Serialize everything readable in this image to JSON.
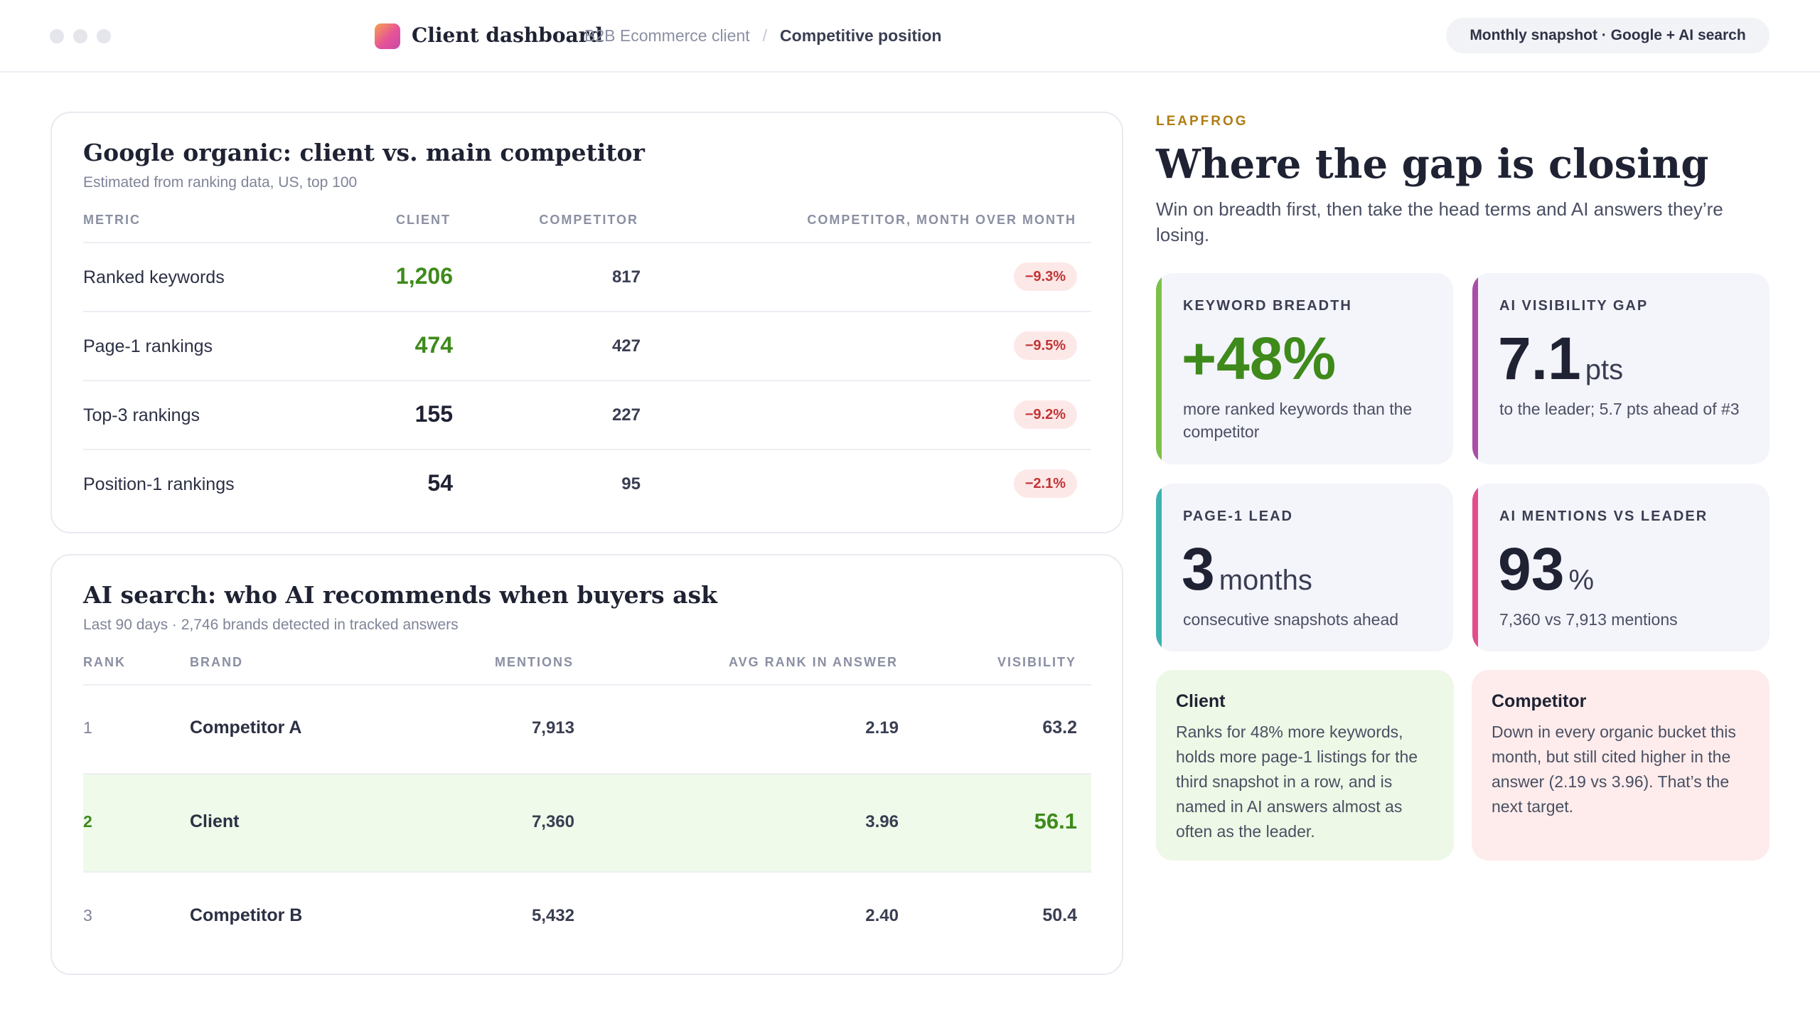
{
  "topbar": {
    "app_title": "Client dashboard",
    "breadcrumb": [
      "B2B Ecommerce client",
      "Competitive position"
    ],
    "breadcrumb_sep": "/",
    "snapshot": "Monthly snapshot · Google + AI search"
  },
  "organic": {
    "title": "Google organic: client vs. main competitor",
    "subtitle": "Estimated from ranking data, US, top 100",
    "headers": [
      "Metric",
      "Client",
      "Competitor",
      "Competitor, month over month"
    ],
    "rows": [
      {
        "metric": "Ranked keywords",
        "client": "1,206",
        "competitor": "817",
        "delta": "−9.3%",
        "client_leads": true
      },
      {
        "metric": "Page-1 rankings",
        "client": "474",
        "competitor": "427",
        "delta": "−9.5%",
        "client_leads": true
      },
      {
        "metric": "Top-3 rankings",
        "client": "155",
        "competitor": "227",
        "delta": "−9.2%",
        "client_leads": false
      },
      {
        "metric": "Position-1 rankings",
        "client": "54",
        "competitor": "95",
        "delta": "−2.1%",
        "client_leads": false
      }
    ]
  },
  "ai_search": {
    "title": "AI search: who AI recommends when buyers ask",
    "subtitle": "Last 90 days · 2,746 brands detected in tracked answers",
    "headers": [
      "Rank",
      "Brand",
      "Mentions",
      "Avg rank in answer",
      "Visibility"
    ],
    "rows": [
      {
        "rank": "1",
        "brand": "Competitor A",
        "mentions": "7,913",
        "avg_rank": "2.19",
        "visibility": "63.2",
        "highlight": false
      },
      {
        "rank": "2",
        "brand": "Client",
        "mentions": "7,360",
        "avg_rank": "3.96",
        "visibility": "56.1",
        "highlight": true
      },
      {
        "rank": "3",
        "brand": "Competitor B",
        "mentions": "5,432",
        "avg_rank": "2.40",
        "visibility": "50.4",
        "highlight": false
      }
    ]
  },
  "panel": {
    "eyebrow": "LEAPFROG",
    "headline": "Where the gap is closing",
    "lede": "Win on breadth first, then take the head terms and AI answers they’re losing.",
    "stats": [
      {
        "label": "Keyword breadth",
        "value": "+48%",
        "unit": "",
        "desc": "more ranked keywords than the competitor",
        "accent": "#7cc04a"
      },
      {
        "label": "AI visibility gap",
        "value": "7.1",
        "unit": "pts",
        "desc": "to the leader; 5.7 pts ahead of #3",
        "accent": "#a94ea8"
      },
      {
        "label": "Page-1 lead",
        "value": "3",
        "unit": "months",
        "desc": "consecutive snapshots ahead",
        "accent": "#3fb2b0"
      },
      {
        "label": "AI mentions vs leader",
        "value": "93",
        "unit": "%",
        "desc": "7,360 vs 7,913 mentions",
        "accent": "#e24e8c"
      }
    ],
    "notes": [
      {
        "title": "Client",
        "body": "Ranks for 48% more keywords, holds more page-1 listings for the third snapshot in a row, and is named in AI answers almost as often as the leader."
      },
      {
        "title": "Competitor",
        "body": "Down in every organic bucket this month, but still cited higher in the answer (2.19 vs 3.96). That’s the next target."
      }
    ]
  },
  "colors": {
    "win_green": "#3e8a1b",
    "loss_red": "#c23535",
    "eyebrow_gold": "#b07d12"
  }
}
